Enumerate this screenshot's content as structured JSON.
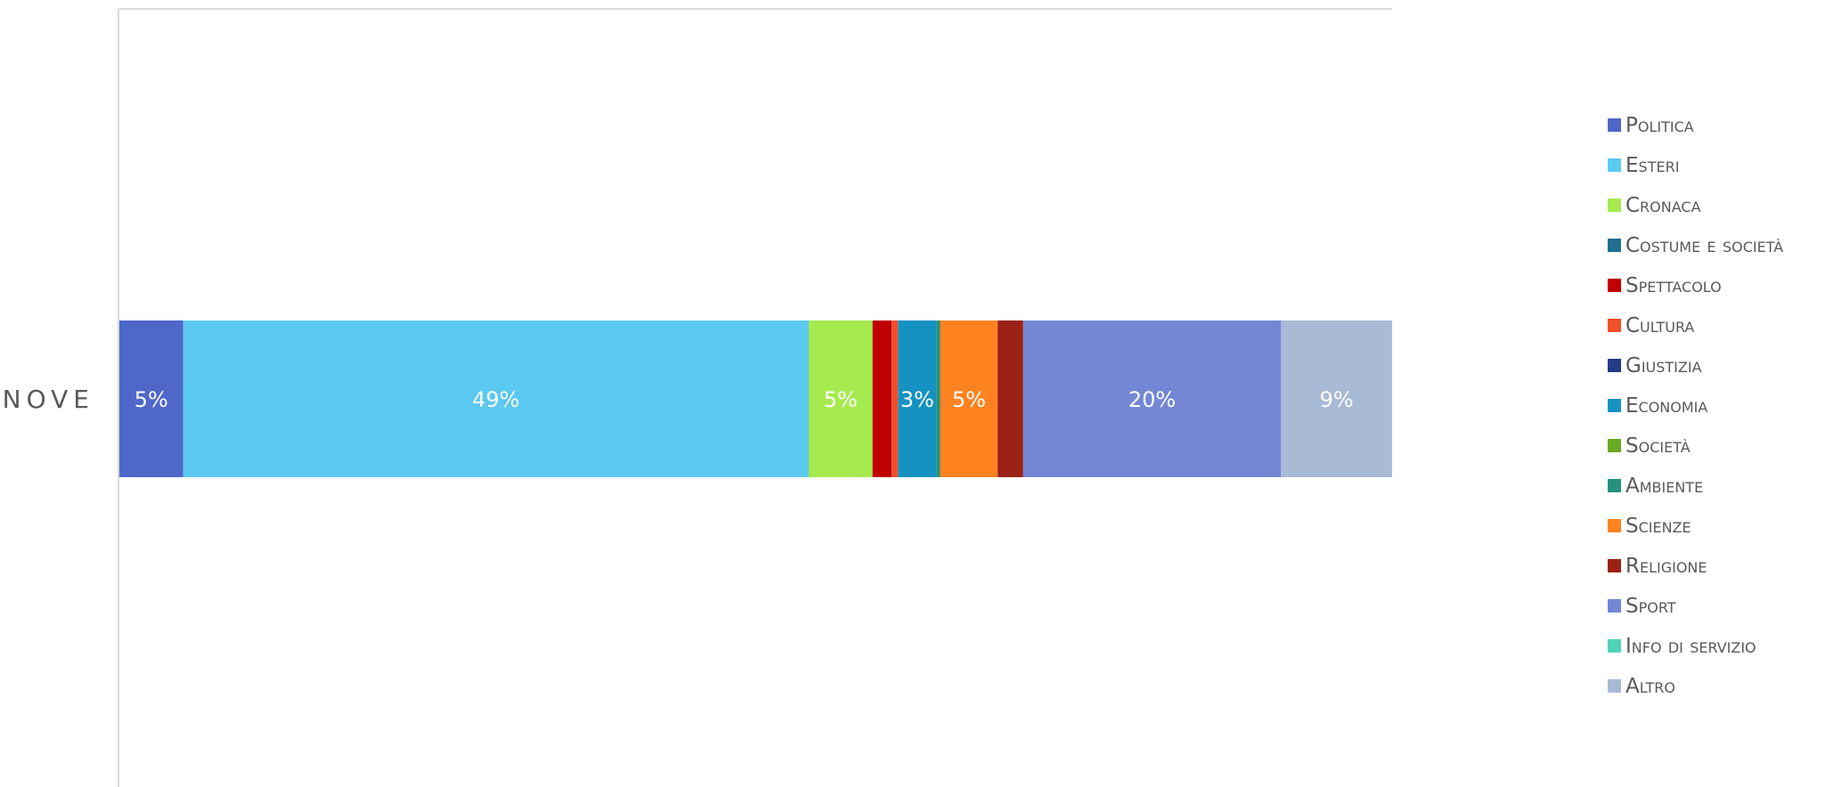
{
  "chart_data": {
    "type": "bar",
    "orientation": "horizontal",
    "stacked": true,
    "percent": true,
    "categories": [
      "NOVE"
    ],
    "series": [
      {
        "name": "Politica",
        "values": [
          5
        ],
        "color": "#4F67C9",
        "label": "5%"
      },
      {
        "name": "Esteri",
        "values": [
          49
        ],
        "color": "#5BC9F1",
        "label": "49%"
      },
      {
        "name": "Cronaca",
        "values": [
          5
        ],
        "color": "#A5EB4F",
        "label": "5%"
      },
      {
        "name": "Costume e società",
        "values": [
          0
        ],
        "color": "#21708F",
        "label": ""
      },
      {
        "name": "Spettacolo",
        "values": [
          1.5
        ],
        "color": "#C00000",
        "label": ""
      },
      {
        "name": "Cultura",
        "values": [
          0.5
        ],
        "color": "#F04F2A",
        "label": ""
      },
      {
        "name": "Giustizia",
        "values": [
          0
        ],
        "color": "#243B85",
        "label": ""
      },
      {
        "name": "Economia",
        "values": [
          3
        ],
        "color": "#1592C2",
        "label": "3%"
      },
      {
        "name": "Società",
        "values": [
          0
        ],
        "color": "#6AAA22",
        "label": ""
      },
      {
        "name": "Ambiente",
        "values": [
          0.3
        ],
        "color": "#25917A",
        "label": ""
      },
      {
        "name": "Scienze",
        "values": [
          4.5
        ],
        "color": "#FF8221",
        "label": "5%"
      },
      {
        "name": "Religione",
        "values": [
          2
        ],
        "color": "#9C2115",
        "label": ""
      },
      {
        "name": "Sport",
        "values": [
          20.2
        ],
        "color": "#7387D4",
        "label": "20%"
      },
      {
        "name": "Info di servizio",
        "values": [
          0
        ],
        "color": "#4FD3B5",
        "label": ""
      },
      {
        "name": "Altro",
        "values": [
          8.7
        ],
        "color": "#A9BAD6",
        "label": "9%"
      }
    ],
    "xlim": [
      0,
      100
    ],
    "grid": false,
    "legend_position": "right"
  }
}
